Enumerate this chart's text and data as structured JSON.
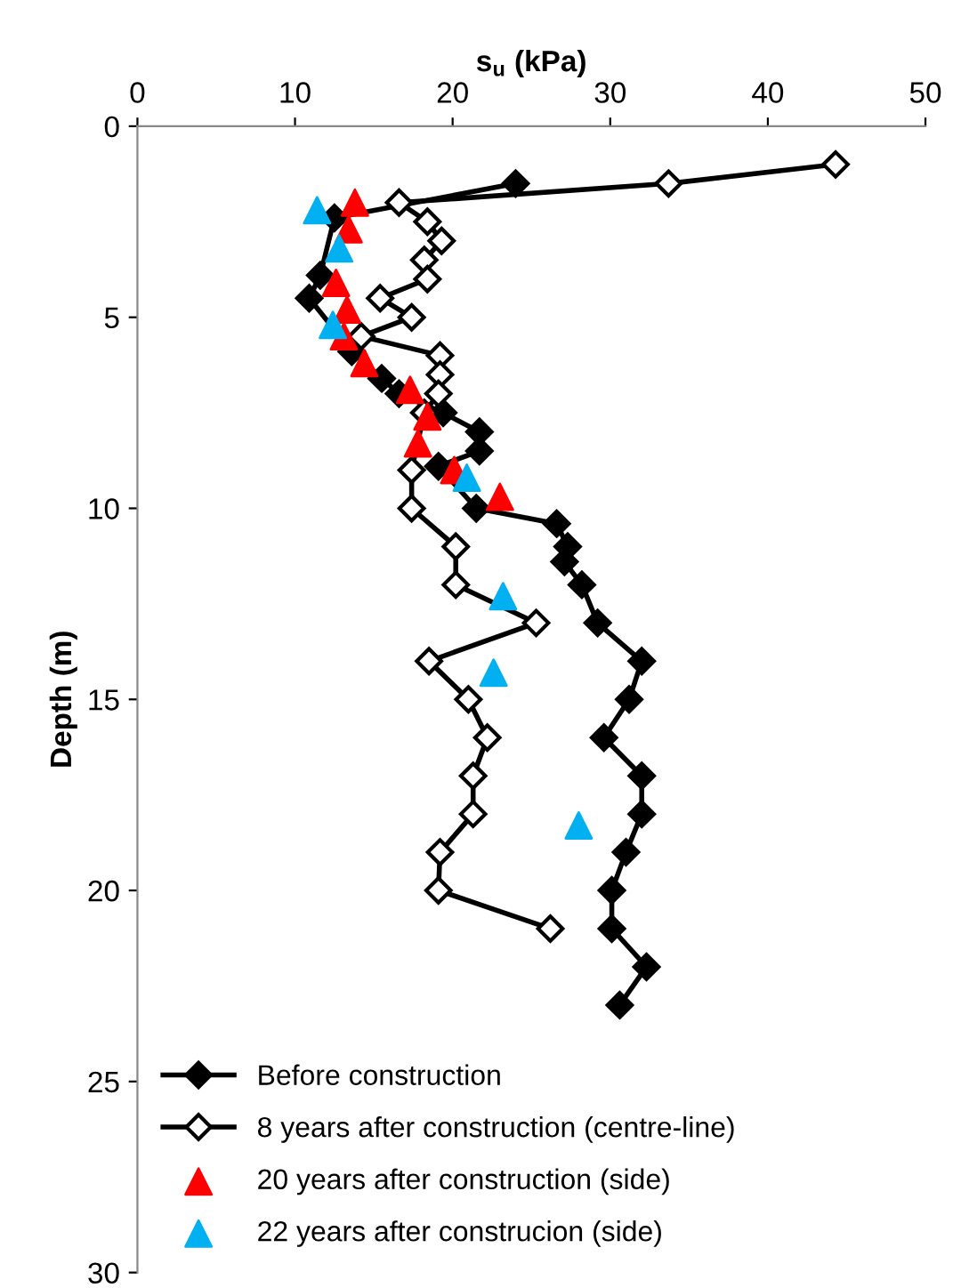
{
  "chart_data": {
    "type": "line",
    "xlabel": "s$_{u}$ (kPa)",
    "ylabel": "Depth (m)",
    "xlim": [
      0,
      50
    ],
    "xticks": [
      0,
      10,
      20,
      30,
      40,
      50
    ],
    "ylim": [
      30,
      0
    ],
    "yticks": [
      0,
      5,
      10,
      15,
      20,
      25,
      30
    ],
    "grid": false,
    "legend": "bottom left",
    "series": [
      {
        "name": "Before construction",
        "marker": "diamond",
        "color": "#000000",
        "x": [
          24.0,
          12.5,
          11.6,
          10.9,
          13.6,
          15.5,
          16.6,
          19.4,
          21.7,
          21.7,
          19.1,
          21.5,
          26.6,
          27.3,
          27.1,
          28.2,
          29.2,
          32.0,
          31.2,
          29.6,
          32.0,
          32.0,
          31.0,
          30.1,
          30.1,
          32.3,
          30.6
        ],
        "values": [
          1.5,
          2.4,
          3.9,
          4.5,
          5.9,
          6.6,
          7.0,
          7.5,
          8.0,
          8.5,
          8.9,
          10.0,
          10.4,
          11.0,
          11.4,
          12.0,
          13.0,
          14.0,
          15.0,
          16.0,
          17.0,
          18.0,
          19.0,
          20.0,
          21.0,
          22.0,
          23.0
        ]
      },
      {
        "name": "8 years after construction (centre-line)",
        "marker": "diamond",
        "color": "#000000",
        "x": [
          44.3,
          33.7,
          16.6,
          18.4,
          19.3,
          18.2,
          18.4,
          15.4,
          17.4,
          14.2,
          19.2,
          19.2,
          19.1,
          18.2,
          17.4,
          17.4,
          20.2,
          20.2,
          25.3,
          18.5,
          21.0,
          22.2,
          21.3,
          21.3,
          19.2,
          19.1,
          26.2
        ],
        "values": [
          1.0,
          1.5,
          2.0,
          2.5,
          3.0,
          3.5,
          4.0,
          4.5,
          5.0,
          5.5,
          6.0,
          6.5,
          7.0,
          7.5,
          9.0,
          10.0,
          11.0,
          12.0,
          13.0,
          14.0,
          15.0,
          16.0,
          17.0,
          18.0,
          19.0,
          20.0,
          21.0
        ]
      },
      {
        "name": "20 years after construction (side)",
        "type": "scatter",
        "marker": "triangle",
        "color": "#ff0000",
        "x": [
          13.8,
          13.4,
          12.6,
          13.3,
          13.1,
          14.4,
          17.3,
          18.4,
          17.8,
          20.1,
          23.0
        ],
        "values": [
          2.0,
          2.7,
          4.1,
          4.8,
          5.5,
          6.2,
          6.9,
          7.6,
          8.3,
          9.0,
          9.7
        ]
      },
      {
        "name": "22 years after construcion (side)",
        "type": "scatter",
        "marker": "triangle",
        "color": "#00b0f0",
        "x": [
          11.4,
          12.8,
          12.4,
          20.9,
          23.2,
          22.6,
          28.0
        ],
        "values": [
          2.2,
          3.2,
          5.2,
          9.2,
          12.3,
          14.3,
          18.3
        ]
      }
    ]
  }
}
